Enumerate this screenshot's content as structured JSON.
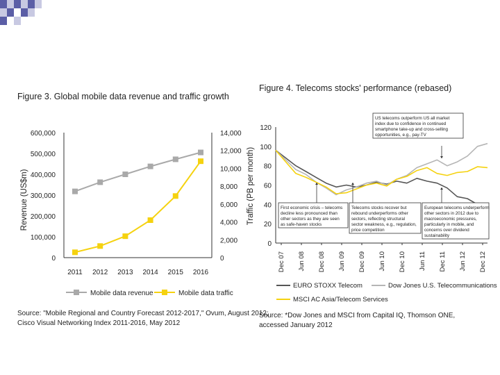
{
  "slide": {
    "corner_pattern_colors": [
      "#5b5ea6",
      "#c8c9e2",
      "#ffffff"
    ]
  },
  "chart_data": [
    {
      "type": "line",
      "title": "Figure 3. Global mobile data revenue and traffic growth",
      "categories": [
        "2011",
        "2012",
        "2013",
        "2014",
        "2015",
        "2016"
      ],
      "ylabel": "Revenue (US$m)",
      "ylabel_right": "Traffic (PB per month)",
      "ylim": [
        0,
        600000
      ],
      "ylim_right": [
        0,
        14000
      ],
      "yticks": [
        "0",
        "100,000",
        "200,000",
        "300,000",
        "400,000",
        "500,000",
        "600,000"
      ],
      "yticks_right": [
        "0",
        "2,000",
        "4,000",
        "6,000",
        "8,000",
        "10,000",
        "12,000",
        "14,000"
      ],
      "series": [
        {
          "name": "Mobile data revenue",
          "axis": "left",
          "color": "#a9a9a9",
          "marker": "square",
          "values": [
            318000,
            362000,
            400000,
            438000,
            472000,
            505000
          ]
        },
        {
          "name": "Mobile data traffic",
          "axis": "right",
          "color": "#f5d20f",
          "marker": "square",
          "values": [
            600,
            1300,
            2400,
            4200,
            6900,
            10800
          ]
        }
      ],
      "legend": [
        "Mobile data revenue",
        "Mobile data traffic"
      ],
      "legend_position": "bottom",
      "source": [
        "Source: \"Mobile Regional and Country Forecast 2012-2017,\" Ovum, August 2012;",
        "Cisco Visual Networking Index 2011-2016, May 2012"
      ]
    },
    {
      "type": "line",
      "title": "Figure 4. Telecoms stocks' performance (rebased)",
      "ylim": [
        0,
        120
      ],
      "yticks": [
        "0",
        "20",
        "40",
        "60",
        "80",
        "100",
        "120"
      ],
      "x_ticks": [
        "Dec 07",
        "Jun 08",
        "Dec 08",
        "Jun 09",
        "Dec 09",
        "Jun 10",
        "Dec 10",
        "Jun 11",
        "Dec 11",
        "Jun 12",
        "Dec 12"
      ],
      "series": [
        {
          "name": "EURO STOXX Telecom",
          "color": "#555555",
          "values": [
            96,
            88,
            80,
            74,
            68,
            62,
            58,
            60,
            58,
            60,
            63,
            61,
            64,
            62,
            67,
            64,
            62,
            57,
            48,
            46,
            40,
            37
          ]
        },
        {
          "name": "Dow Jones U.S. Telecommunications",
          "color": "#b5b5b5",
          "values": [
            96,
            86,
            76,
            71,
            63,
            57,
            50,
            55,
            58,
            62,
            64,
            60,
            66,
            70,
            78,
            82,
            86,
            80,
            84,
            90,
            100,
            103
          ]
        },
        {
          "name": "MSCI AC Asia/Telecom Services",
          "color": "#f5d20f",
          "values": [
            96,
            84,
            72,
            68,
            63,
            58,
            51,
            52,
            56,
            60,
            62,
            59,
            66,
            69,
            75,
            78,
            72,
            70,
            73,
            74,
            79,
            78
          ]
        }
      ],
      "legend": [
        "EURO STOXX Telecom",
        "Dow Jones U.S. Telecommunications",
        "MSCI AC Asia/Telecom Services"
      ],
      "legend_position": "bottom",
      "annotations": [
        {
          "lines": [
            "US telecoms outperform US all market",
            "index due to confidence in continued",
            "smartphone take-up and cross-selling",
            "opportunities, e.g., pay-TV"
          ]
        },
        {
          "lines": [
            "First economic crisis – telecoms",
            "decline less pronounced than",
            "other sectors as they are seen",
            "as safe-haven stocks"
          ]
        },
        {
          "lines": [
            "Telecoms stocks recover but",
            "rebound underperforms other",
            "sectors, reflecting structural",
            "sector weakness, e.g., regulation,",
            "price competition"
          ]
        },
        {
          "lines": [
            "European telecoms underperform",
            "other sectors in 2012 due to",
            "macroeconomic pressures,",
            "particularly in mobile, and",
            "concerns over dividend",
            "sustainability"
          ]
        }
      ],
      "source": [
        "Source: *Dow Jones and MSCI from Capital IQ, Thomson ONE,",
        "accessed January 2012"
      ]
    }
  ]
}
